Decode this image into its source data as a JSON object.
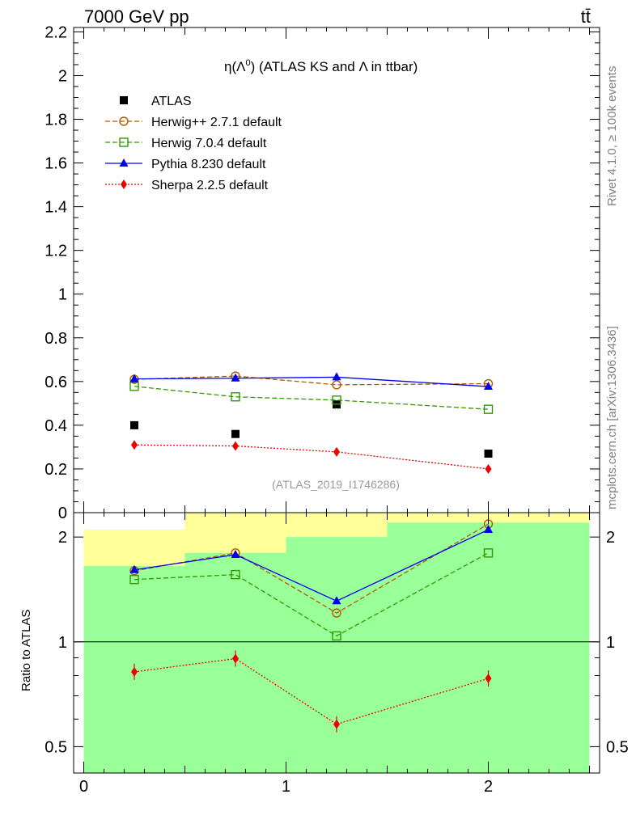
{
  "header": {
    "left_label": "7000 GeV pp",
    "right_label": "tt̄"
  },
  "side_labels": {
    "rivet": "Rivet 4.1.0, ≥ 100k events",
    "mcplots": "mcplots.cern.ch [arXiv:1306.3436]"
  },
  "colors": {
    "atlas": "#000000",
    "herwigpp": "#b35900",
    "herwig7": "#339900",
    "pythia": "#0000ee",
    "sherpa": "#ee0000",
    "band_inner": "#99ff99",
    "band_outer": "#ffff99"
  },
  "chart_data": [
    {
      "id": "main",
      "type": "line",
      "title": "η(Λ⁰) (ATLAS KS and Λ in ttbar)",
      "title_parts": {
        "eta": "η",
        "open": "(",
        "lam": "Λ",
        "sup0": "0",
        "rest": ") (ATLAS KS and ",
        "lam2": "Λ",
        "tail": " in ttbar)"
      },
      "watermark": "(ATLAS_2019_I1746286)",
      "xlabel": "",
      "ylabel": "",
      "xlim": [
        -0.05,
        2.55
      ],
      "ylim": [
        0,
        2.22
      ],
      "yticks": [
        0,
        0.2,
        0.4,
        0.6,
        0.8,
        1,
        1.2,
        1.4,
        1.6,
        1.8,
        2,
        2.2
      ],
      "ytick_labels": [
        "0",
        "0.2",
        "0.4",
        "0.6",
        "0.8",
        "1",
        "1.2",
        "1.4",
        "1.6",
        "1.8",
        "2",
        "2.2"
      ],
      "x": [
        0.25,
        0.75,
        1.25,
        2.0
      ],
      "series": [
        {
          "name": "ATLAS",
          "key": "atlas",
          "marker": "square-filled",
          "line": "none",
          "values": [
            0.4,
            0.36,
            0.495,
            0.27
          ]
        },
        {
          "name": "Herwig++ 2.7.1 default",
          "key": "herwigpp",
          "marker": "circle-open",
          "line": "dashed",
          "values": [
            0.61,
            0.625,
            0.585,
            0.59
          ]
        },
        {
          "name": "Herwig 7.0.4 default",
          "key": "herwig7",
          "marker": "square-open",
          "line": "dashed",
          "values": [
            0.578,
            0.53,
            0.515,
            0.473
          ]
        },
        {
          "name": "Pythia 8.230 default",
          "key": "pythia",
          "marker": "triangle-filled",
          "line": "solid",
          "values": [
            0.612,
            0.615,
            0.62,
            0.577
          ]
        },
        {
          "name": "Sherpa 2.2.5 default",
          "key": "sherpa",
          "marker": "diamond-filled",
          "line": "dotted",
          "values": [
            0.31,
            0.305,
            0.278,
            0.2
          ]
        }
      ]
    },
    {
      "id": "ratio",
      "type": "line",
      "ylabel": "Ratio to ATLAS",
      "yscale": "log",
      "xlim": [
        -0.05,
        2.55
      ],
      "ylim": [
        0.42,
        2.35
      ],
      "xticks": [
        0,
        1,
        2
      ],
      "xtick_labels": [
        "0",
        "1",
        "2"
      ],
      "yticks": [
        0.5,
        1,
        2
      ],
      "ytick_labels": [
        "0.5",
        "1",
        "2"
      ],
      "x": [
        0.25,
        0.75,
        1.25,
        2.0
      ],
      "bands": [
        {
          "x0": 0.0,
          "x1": 0.5,
          "outer": [
            0.38,
            2.1
          ],
          "inner": [
            0.4,
            1.65
          ]
        },
        {
          "x0": 0.5,
          "x1": 1.0,
          "outer": [
            0.38,
            2.35
          ],
          "inner": [
            0.38,
            1.8
          ]
        },
        {
          "x0": 1.0,
          "x1": 1.5,
          "outer": [
            0.38,
            2.35
          ],
          "inner": [
            0.38,
            2.0
          ]
        },
        {
          "x0": 1.5,
          "x1": 2.5,
          "outer": [
            0.38,
            2.35
          ],
          "inner": [
            0.38,
            2.2
          ]
        }
      ],
      "series": [
        {
          "name": "Herwig++ 2.7.1 default",
          "key": "herwigpp",
          "marker": "circle-open",
          "line": "dashed",
          "values": [
            1.6,
            1.8,
            1.21,
            2.18
          ]
        },
        {
          "name": "Herwig 7.0.4 default",
          "key": "herwig7",
          "marker": "square-open",
          "line": "dashed",
          "values": [
            1.51,
            1.56,
            1.04,
            1.8
          ]
        },
        {
          "name": "Pythia 8.230 default",
          "key": "pythia",
          "marker": "triangle-filled",
          "line": "solid",
          "values": [
            1.61,
            1.78,
            1.31,
            2.1
          ]
        },
        {
          "name": "Sherpa 2.2.5 default",
          "key": "sherpa",
          "marker": "diamond-filled",
          "line": "dotted",
          "values": [
            0.82,
            0.895,
            0.58,
            0.785
          ]
        }
      ]
    }
  ]
}
